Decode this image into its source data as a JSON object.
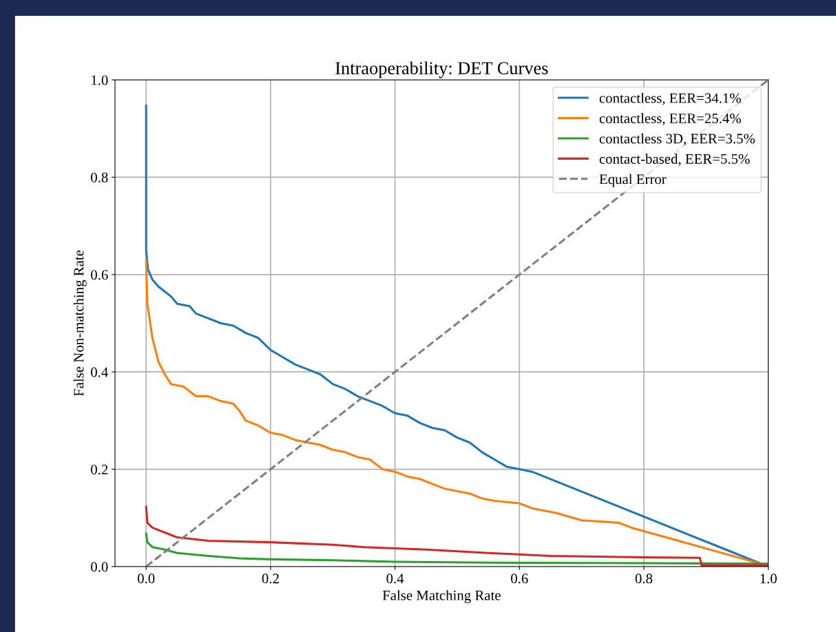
{
  "chart_data": {
    "type": "line",
    "title": "Intraoperability: DET Curves",
    "xlabel": "False Matching Rate",
    "ylabel": "False Non-matching Rate",
    "xlim": [
      -0.05,
      1.0
    ],
    "ylim": [
      0.0,
      1.0
    ],
    "xticks": [
      {
        "value": 0.0,
        "label": "0.0"
      },
      {
        "value": 0.2,
        "label": "0.2"
      },
      {
        "value": 0.4,
        "label": "0.4"
      },
      {
        "value": 0.6,
        "label": "0.6"
      },
      {
        "value": 0.8,
        "label": "0.8"
      },
      {
        "value": 1.0,
        "label": "1.0"
      }
    ],
    "yticks": [
      {
        "value": 0.0,
        "label": "0.0"
      },
      {
        "value": 0.2,
        "label": "0.2"
      },
      {
        "value": 0.4,
        "label": "0.4"
      },
      {
        "value": 0.6,
        "label": "0.6"
      },
      {
        "value": 0.8,
        "label": "0.8"
      },
      {
        "value": 1.0,
        "label": "1.0"
      }
    ],
    "grid": true,
    "legend": "top right",
    "line_style": "solid",
    "series": [
      {
        "name": "contactless, EER=34.1%",
        "color": "#1f77b4",
        "x": [
          0,
          0,
          0.003,
          0.01,
          0.02,
          0.03,
          0.04,
          0.05,
          0.07,
          0.08,
          0.1,
          0.12,
          0.14,
          0.16,
          0.18,
          0.2,
          0.22,
          0.24,
          0.26,
          0.28,
          0.3,
          0.32,
          0.34,
          0.36,
          0.38,
          0.4,
          0.42,
          0.44,
          0.46,
          0.48,
          0.5,
          0.52,
          0.54,
          0.56,
          0.58,
          0.6,
          0.62,
          0.63,
          0.99
        ],
        "values": [
          0.947,
          0.65,
          0.61,
          0.59,
          0.575,
          0.565,
          0.555,
          0.54,
          0.535,
          0.52,
          0.51,
          0.5,
          0.495,
          0.48,
          0.47,
          0.445,
          0.43,
          0.415,
          0.405,
          0.395,
          0.375,
          0.365,
          0.35,
          0.34,
          0.33,
          0.315,
          0.31,
          0.295,
          0.285,
          0.28,
          0.265,
          0.255,
          0.235,
          0.22,
          0.205,
          0.2,
          0.195,
          0.19,
          0.005
        ]
      },
      {
        "name": "contactless, EER=25.4%",
        "color": "#ff7f0e",
        "x": [
          0,
          0.002,
          0.01,
          0.02,
          0.03,
          0.04,
          0.06,
          0.07,
          0.08,
          0.1,
          0.12,
          0.14,
          0.15,
          0.16,
          0.18,
          0.2,
          0.22,
          0.24,
          0.26,
          0.28,
          0.3,
          0.32,
          0.34,
          0.36,
          0.38,
          0.4,
          0.42,
          0.44,
          0.46,
          0.48,
          0.52,
          0.54,
          0.56,
          0.6,
          0.62,
          0.66,
          0.7,
          0.76,
          0.78,
          0.99
        ],
        "values": [
          0.63,
          0.54,
          0.47,
          0.42,
          0.395,
          0.375,
          0.37,
          0.36,
          0.35,
          0.35,
          0.34,
          0.335,
          0.32,
          0.3,
          0.29,
          0.275,
          0.27,
          0.26,
          0.255,
          0.25,
          0.24,
          0.235,
          0.225,
          0.22,
          0.2,
          0.195,
          0.185,
          0.18,
          0.17,
          0.16,
          0.15,
          0.14,
          0.135,
          0.13,
          0.12,
          0.11,
          0.095,
          0.09,
          0.08,
          0.005
        ]
      },
      {
        "name": "contactless 3D, EER=3.5%",
        "color": "#2ca02c",
        "x": [
          0,
          0.002,
          0.01,
          0.03,
          0.05,
          0.1,
          0.15,
          0.2,
          0.3,
          0.4,
          0.55,
          0.8,
          1.0
        ],
        "values": [
          0.068,
          0.05,
          0.04,
          0.035,
          0.028,
          0.022,
          0.017,
          0.015,
          0.013,
          0.01,
          0.008,
          0.007,
          0.006
        ]
      },
      {
        "name": "contact-based, EER=5.5%",
        "color": "#d62728",
        "x": [
          0,
          0.002,
          0.01,
          0.03,
          0.05,
          0.1,
          0.2,
          0.3,
          0.35,
          0.45,
          0.55,
          0.65,
          0.8,
          0.89,
          0.893,
          1.0
        ],
        "values": [
          0.123,
          0.09,
          0.08,
          0.07,
          0.06,
          0.053,
          0.05,
          0.045,
          0.04,
          0.035,
          0.028,
          0.022,
          0.019,
          0.018,
          0.002,
          0.002
        ]
      },
      {
        "name": "Equal Error",
        "color": "#808080",
        "line_style": "dashed",
        "x": [
          0,
          1
        ],
        "values": [
          0,
          1
        ]
      }
    ]
  }
}
